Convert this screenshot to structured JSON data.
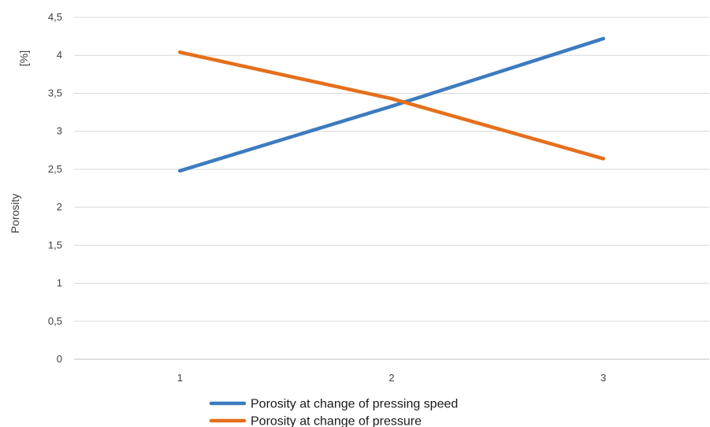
{
  "chart_data": {
    "type": "line",
    "title": "",
    "xlabel": "",
    "ylabel": "Porosity",
    "ylabel_unit": "[%]",
    "categories": [
      "1",
      "2",
      "3"
    ],
    "ylim": [
      0,
      4.5
    ],
    "yticks": [
      "0",
      "0,5",
      "1",
      "1,5",
      "2",
      "2,5",
      "3",
      "3,5",
      "4",
      "4,5"
    ],
    "grid": "horizontal",
    "legend_position": "bottom",
    "series": [
      {
        "name": "Porosity at change of pressing speed",
        "values": [
          2.48,
          3.33,
          4.22
        ],
        "color": "#3d7bc0"
      },
      {
        "name": "Porosity at change of pressure",
        "values": [
          4.04,
          3.43,
          2.64
        ],
        "color": "#e56f1c"
      }
    ]
  }
}
